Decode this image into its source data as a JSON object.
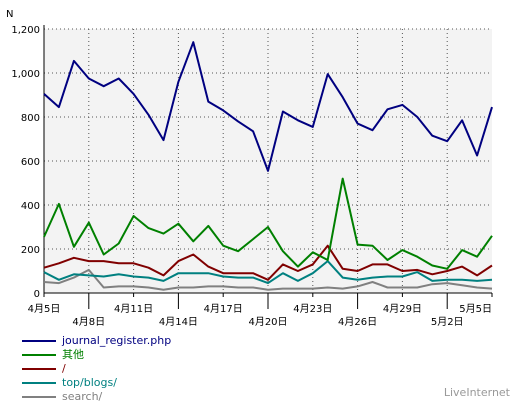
{
  "chart_data": {
    "type": "line",
    "y_axis_title": "N",
    "ylim": [
      0,
      1200
    ],
    "y_ticks": [
      0,
      200,
      400,
      600,
      800,
      1000,
      1200
    ],
    "y_tick_labels": [
      "0",
      "200",
      "400",
      "600",
      "800",
      "1,000",
      "1,200"
    ],
    "grid": true,
    "x": [
      "4月5日",
      "4月6日",
      "4月7日",
      "4月8日",
      "4月9日",
      "4月10日",
      "4月11日",
      "4月12日",
      "4月13日",
      "4月14日",
      "4月15日",
      "4月16日",
      "4月17日",
      "4月18日",
      "4月19日",
      "4月20日",
      "4月21日",
      "4月22日",
      "4月23日",
      "4月24日",
      "4月25日",
      "4月26日",
      "4月27日",
      "4月28日",
      "4月29日",
      "4月30日",
      "5月1日",
      "5月2日",
      "5月3日",
      "5月4日",
      "5月5日"
    ],
    "x_tick_labels": [
      {
        "index": 0,
        "label": "4月5日",
        "row": 0
      },
      {
        "index": 3,
        "label": "4月8日",
        "row": 1
      },
      {
        "index": 6,
        "label": "4月11日",
        "row": 0
      },
      {
        "index": 9,
        "label": "4月14日",
        "row": 1
      },
      {
        "index": 12,
        "label": "4月17日",
        "row": 0
      },
      {
        "index": 15,
        "label": "4月20日",
        "row": 1
      },
      {
        "index": 18,
        "label": "4月23日",
        "row": 0
      },
      {
        "index": 21,
        "label": "4月26日",
        "row": 1
      },
      {
        "index": 24,
        "label": "4月29日",
        "row": 0
      },
      {
        "index": 27,
        "label": "5月2日",
        "row": 1
      },
      {
        "index": 30,
        "label": "5月5日",
        "row": 0
      }
    ],
    "series": [
      {
        "name": "journal_register.php",
        "color": "#000080",
        "values": [
          905,
          845,
          1055,
          975,
          940,
          975,
          905,
          810,
          695,
          960,
          1140,
          870,
          830,
          780,
          735,
          555,
          825,
          785,
          755,
          995,
          890,
          770,
          740,
          835,
          855,
          800,
          715,
          690,
          785,
          625,
          845
        ]
      },
      {
        "name": "其他",
        "color": "#008000",
        "values": [
          255,
          405,
          210,
          320,
          175,
          225,
          350,
          295,
          270,
          315,
          235,
          305,
          215,
          190,
          245,
          300,
          190,
          120,
          185,
          150,
          520,
          220,
          215,
          150,
          195,
          165,
          125,
          110,
          195,
          165,
          260
        ]
      },
      {
        "name": "/",
        "color": "#800000",
        "values": [
          115,
          135,
          160,
          145,
          145,
          135,
          135,
          115,
          80,
          145,
          175,
          120,
          90,
          90,
          90,
          60,
          130,
          100,
          130,
          215,
          110,
          100,
          130,
          130,
          100,
          105,
          85,
          100,
          120,
          80,
          125
        ]
      },
      {
        "name": "top/blogs/",
        "color": "#008080",
        "values": [
          95,
          60,
          85,
          80,
          75,
          85,
          75,
          70,
          55,
          90,
          90,
          90,
          75,
          70,
          70,
          45,
          90,
          55,
          90,
          145,
          70,
          60,
          70,
          75,
          75,
          95,
          55,
          60,
          60,
          55,
          60
        ]
      },
      {
        "name": "search/",
        "color": "#808080",
        "values": [
          50,
          45,
          70,
          105,
          25,
          30,
          30,
          25,
          15,
          25,
          25,
          30,
          30,
          25,
          25,
          15,
          20,
          20,
          20,
          25,
          20,
          30,
          50,
          25,
          25,
          25,
          40,
          45,
          35,
          25,
          20
        ]
      }
    ]
  },
  "footer": {
    "brand": "LiveInternet"
  }
}
